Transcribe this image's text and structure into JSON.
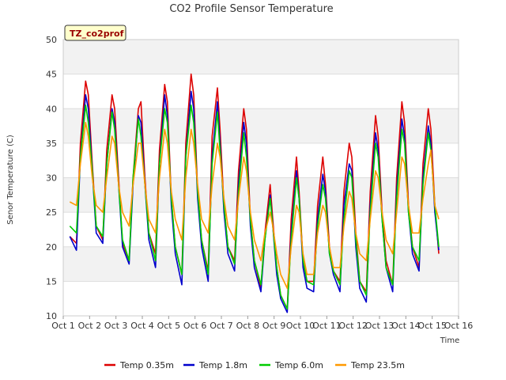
{
  "chart_data": {
    "type": "line",
    "title": "CO2 Profile Sensor Temperature",
    "xlabel": "Time",
    "ylabel": "Senor Temperature (C)",
    "badge": "TZ_co2prof",
    "xlim": [
      1,
      16
    ],
    "ylim": [
      10,
      50
    ],
    "xticks": [
      1,
      2,
      3,
      4,
      5,
      6,
      7,
      8,
      9,
      10,
      11,
      12,
      13,
      14,
      15,
      16
    ],
    "xtick_labels": [
      "Oct 1",
      "Oct 2",
      "Oct 3",
      "Oct 4",
      "Oct 5",
      "Oct 6",
      "Oct 7",
      "Oct 8",
      "Oct 9",
      "Oct 10",
      "Oct 11",
      "Oct 12",
      "Oct 13",
      "Oct 14",
      "Oct 15",
      "Oct 16"
    ],
    "yticks": [
      10,
      15,
      20,
      25,
      30,
      35,
      40,
      45,
      50
    ],
    "grid": true,
    "legend_position": "bottom",
    "series": [
      {
        "name": "Temp 0.35m",
        "color": "#dd0000",
        "x": [
          1.25,
          1.5,
          1.65,
          1.85,
          1.95,
          2.1,
          2.25,
          2.5,
          2.65,
          2.85,
          2.95,
          3.1,
          3.25,
          3.5,
          3.65,
          3.85,
          3.95,
          4.1,
          4.25,
          4.5,
          4.65,
          4.85,
          4.95,
          5.1,
          5.25,
          5.5,
          5.65,
          5.85,
          5.95,
          6.1,
          6.25,
          6.5,
          6.65,
          6.85,
          6.95,
          7.1,
          7.25,
          7.5,
          7.65,
          7.85,
          7.95,
          8.1,
          8.25,
          8.5,
          8.65,
          8.85,
          8.95,
          9.1,
          9.25,
          9.5,
          9.65,
          9.85,
          9.95,
          10.1,
          10.25,
          10.5,
          10.65,
          10.85,
          10.95,
          11.1,
          11.25,
          11.5,
          11.65,
          11.85,
          11.95,
          12.1,
          12.25,
          12.5,
          12.65,
          12.85,
          12.95,
          13.1,
          13.25,
          13.5,
          13.65,
          13.85,
          13.95,
          14.1,
          14.25,
          14.5,
          14.65,
          14.85,
          14.95,
          15.1,
          15.25
        ],
        "y": [
          21.5,
          20.5,
          35,
          44,
          42,
          32,
          23,
          21,
          34,
          42,
          40,
          30,
          20.5,
          18,
          30,
          40,
          41,
          30,
          22,
          19,
          34,
          43.5,
          41,
          27,
          20,
          16,
          35,
          45,
          42,
          28,
          21,
          16.5,
          36,
          43,
          37,
          26,
          20,
          18,
          31,
          40,
          37,
          24,
          18,
          14,
          22,
          29,
          24,
          17,
          13,
          11,
          24,
          33,
          28,
          18,
          15,
          15,
          26,
          33,
          29,
          20,
          16.5,
          15,
          28,
          35,
          33,
          22,
          15,
          13.5,
          28,
          39,
          36,
          25,
          18,
          14.5,
          30,
          41,
          38,
          26,
          20,
          17,
          32,
          40,
          37,
          26,
          19
        ]
      },
      {
        "name": "Temp 1.8m",
        "color": "#0000cc",
        "x": [
          1.25,
          1.5,
          1.65,
          1.85,
          1.95,
          2.1,
          2.25,
          2.5,
          2.65,
          2.85,
          2.95,
          3.1,
          3.25,
          3.5,
          3.65,
          3.85,
          3.95,
          4.1,
          4.25,
          4.5,
          4.65,
          4.85,
          4.95,
          5.1,
          5.25,
          5.5,
          5.65,
          5.85,
          5.95,
          6.1,
          6.25,
          6.5,
          6.65,
          6.85,
          6.95,
          7.1,
          7.25,
          7.5,
          7.65,
          7.85,
          7.95,
          8.1,
          8.25,
          8.5,
          8.65,
          8.85,
          8.95,
          9.1,
          9.25,
          9.5,
          9.65,
          9.85,
          9.95,
          10.1,
          10.25,
          10.5,
          10.65,
          10.85,
          10.95,
          11.1,
          11.25,
          11.5,
          11.65,
          11.85,
          11.95,
          12.1,
          12.25,
          12.5,
          12.65,
          12.85,
          12.95,
          13.1,
          13.25,
          13.5,
          13.65,
          13.85,
          13.95,
          14.1,
          14.25,
          14.5,
          14.65,
          14.85,
          14.95,
          15.1,
          15.25
        ],
        "y": [
          21.5,
          19.5,
          33,
          42,
          40,
          31,
          22,
          20.5,
          32,
          40,
          38,
          29,
          20,
          17.5,
          29,
          39,
          38,
          29,
          21,
          17,
          32,
          42,
          39,
          26,
          19,
          14.5,
          33,
          42.5,
          40,
          27,
          20,
          15,
          33,
          41,
          35,
          25,
          19,
          16.5,
          29,
          38,
          35,
          23,
          17,
          13.5,
          21,
          27.5,
          23,
          16,
          12.5,
          10.5,
          22,
          31,
          27,
          17,
          14,
          13.5,
          24,
          30.5,
          28,
          19,
          16,
          13.5,
          26,
          32,
          31,
          20,
          14,
          12,
          26,
          36.5,
          34,
          24,
          17,
          13.5,
          28,
          38.5,
          36,
          25,
          19,
          16.5,
          30,
          37.5,
          35,
          25,
          19.5
        ]
      },
      {
        "name": "Temp 6.0m",
        "color": "#00cc00",
        "x": [
          1.25,
          1.5,
          1.65,
          1.85,
          1.95,
          2.1,
          2.25,
          2.5,
          2.65,
          2.85,
          2.95,
          3.1,
          3.25,
          3.5,
          3.65,
          3.85,
          3.95,
          4.1,
          4.25,
          4.5,
          4.65,
          4.85,
          4.95,
          5.1,
          5.25,
          5.5,
          5.65,
          5.85,
          5.95,
          6.1,
          6.25,
          6.5,
          6.65,
          6.85,
          6.95,
          7.1,
          7.25,
          7.5,
          7.65,
          7.85,
          7.95,
          8.1,
          8.25,
          8.5,
          8.65,
          8.85,
          8.95,
          9.1,
          9.25,
          9.5,
          9.65,
          9.85,
          9.95,
          10.1,
          10.25,
          10.5,
          10.65,
          10.85,
          10.95,
          11.1,
          11.25,
          11.5,
          11.65,
          11.85,
          11.95,
          12.1,
          12.25,
          12.5,
          12.65,
          12.85,
          12.95,
          13.1,
          13.25,
          13.5,
          13.65,
          13.85,
          13.95,
          14.1,
          14.25,
          14.5,
          14.65,
          14.85,
          14.95,
          15.1,
          15.25
        ],
        "y": [
          23,
          22,
          33,
          40.5,
          38,
          31,
          23,
          21.5,
          32,
          39.5,
          37,
          29,
          21,
          18,
          30,
          38.5,
          36,
          29,
          22,
          18,
          32,
          40,
          38,
          27,
          20,
          16,
          33,
          40.5,
          38,
          28,
          21,
          16,
          32,
          39.5,
          34,
          26,
          20,
          17.5,
          28,
          36.5,
          33,
          24,
          18,
          14.5,
          21,
          27,
          23,
          17,
          13,
          11,
          21,
          30,
          27,
          18,
          15,
          14.5,
          23,
          29,
          27,
          19,
          16.5,
          14.5,
          24,
          31,
          30,
          21,
          15,
          13,
          25,
          35,
          33,
          24,
          17,
          14.5,
          27,
          37,
          35,
          25,
          20,
          18,
          29,
          36.5,
          34,
          26,
          20
        ]
      },
      {
        "name": "Temp 23.5m",
        "color": "#ff9900",
        "x": [
          1.25,
          1.5,
          1.65,
          1.85,
          1.95,
          2.1,
          2.25,
          2.5,
          2.65,
          2.85,
          2.95,
          3.1,
          3.25,
          3.5,
          3.65,
          3.85,
          3.95,
          4.1,
          4.25,
          4.5,
          4.65,
          4.85,
          4.95,
          5.1,
          5.25,
          5.5,
          5.65,
          5.85,
          5.95,
          6.1,
          6.25,
          6.5,
          6.65,
          6.85,
          6.95,
          7.1,
          7.25,
          7.5,
          7.65,
          7.85,
          7.95,
          8.1,
          8.25,
          8.5,
          8.65,
          8.85,
          8.95,
          9.1,
          9.25,
          9.5,
          9.65,
          9.85,
          9.95,
          10.1,
          10.25,
          10.5,
          10.65,
          10.85,
          10.95,
          11.1,
          11.25,
          11.5,
          11.65,
          11.85,
          11.95,
          12.1,
          12.25,
          12.5,
          12.65,
          12.85,
          12.95,
          13.1,
          13.25,
          13.5,
          13.65,
          13.85,
          13.95,
          14.1,
          14.25,
          14.5,
          14.65,
          14.85,
          14.95,
          15.1,
          15.25
        ],
        "y": [
          26.5,
          26,
          32,
          38,
          36,
          30,
          26,
          25,
          30,
          36,
          35,
          29,
          25,
          23,
          29,
          35,
          35,
          29,
          24,
          22,
          30,
          37,
          35,
          28,
          24,
          21,
          30,
          37,
          35,
          29,
          24,
          22,
          29,
          35,
          33,
          27,
          23,
          21,
          27,
          33,
          31,
          25,
          21,
          18,
          22,
          25,
          23,
          19,
          16,
          14,
          20,
          26,
          25,
          19,
          16,
          16,
          22,
          26,
          25,
          20,
          17,
          17,
          23,
          28,
          27,
          22,
          19,
          18,
          24,
          31,
          30,
          25,
          21,
          19,
          25,
          33,
          32,
          26,
          22,
          22,
          27,
          32,
          34,
          26,
          24
        ]
      }
    ]
  }
}
